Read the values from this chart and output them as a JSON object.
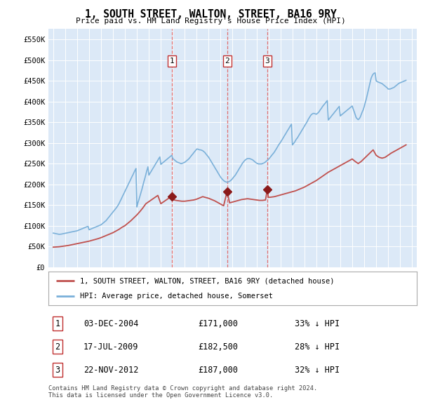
{
  "title": "1, SOUTH STREET, WALTON, STREET, BA16 9RY",
  "subtitle": "Price paid vs. HM Land Registry's House Price Index (HPI)",
  "ylim": [
    0,
    575000
  ],
  "yticks": [
    0,
    50000,
    100000,
    150000,
    200000,
    250000,
    300000,
    350000,
    400000,
    450000,
    500000,
    550000
  ],
  "ytick_labels": [
    "£0",
    "£50K",
    "£100K",
    "£150K",
    "£200K",
    "£250K",
    "£300K",
    "£350K",
    "£400K",
    "£450K",
    "£500K",
    "£550K"
  ],
  "plot_bg": "#dce9f7",
  "transactions": [
    {
      "date": 2004.92,
      "price": 171000,
      "label": "1"
    },
    {
      "date": 2009.54,
      "price": 182500,
      "label": "2"
    },
    {
      "date": 2012.9,
      "price": 187000,
      "label": "3"
    }
  ],
  "legend_property": "1, SOUTH STREET, WALTON, STREET, BA16 9RY (detached house)",
  "legend_hpi": "HPI: Average price, detached house, Somerset",
  "table_rows": [
    {
      "num": "1",
      "date": "03-DEC-2004",
      "price": "£171,000",
      "hpi": "33% ↓ HPI"
    },
    {
      "num": "2",
      "date": "17-JUL-2009",
      "price": "£182,500",
      "hpi": "28% ↓ HPI"
    },
    {
      "num": "3",
      "date": "22-NOV-2012",
      "price": "£187,000",
      "hpi": "32% ↓ HPI"
    }
  ],
  "footer": "Contains HM Land Registry data © Crown copyright and database right 2024.\nThis data is licensed under the Open Government Licence v3.0.",
  "hpi_line_x": [
    1995.0,
    1995.08,
    1995.17,
    1995.25,
    1995.33,
    1995.42,
    1995.5,
    1995.58,
    1995.67,
    1995.75,
    1995.83,
    1995.92,
    1996.0,
    1996.08,
    1996.17,
    1996.25,
    1996.33,
    1996.42,
    1996.5,
    1996.58,
    1996.67,
    1996.75,
    1996.83,
    1996.92,
    1997.0,
    1997.08,
    1997.17,
    1997.25,
    1997.33,
    1997.42,
    1997.5,
    1997.58,
    1997.67,
    1997.75,
    1997.83,
    1997.92,
    1998.0,
    1998.08,
    1998.17,
    1998.25,
    1998.33,
    1998.42,
    1998.5,
    1998.58,
    1998.67,
    1998.75,
    1998.83,
    1998.92,
    1999.0,
    1999.08,
    1999.17,
    1999.25,
    1999.33,
    1999.42,
    1999.5,
    1999.58,
    1999.67,
    1999.75,
    1999.83,
    1999.92,
    2000.0,
    2000.08,
    2000.17,
    2000.25,
    2000.33,
    2000.42,
    2000.5,
    2000.58,
    2000.67,
    2000.75,
    2000.83,
    2000.92,
    2001.0,
    2001.08,
    2001.17,
    2001.25,
    2001.33,
    2001.42,
    2001.5,
    2001.58,
    2001.67,
    2001.75,
    2001.83,
    2001.92,
    2002.0,
    2002.08,
    2002.17,
    2002.25,
    2002.33,
    2002.42,
    2002.5,
    2002.58,
    2002.67,
    2002.75,
    2002.83,
    2002.92,
    2003.0,
    2003.08,
    2003.17,
    2003.25,
    2003.33,
    2003.42,
    2003.5,
    2003.58,
    2003.67,
    2003.75,
    2003.83,
    2003.92,
    2004.0,
    2004.08,
    2004.17,
    2004.25,
    2004.33,
    2004.42,
    2004.5,
    2004.58,
    2004.67,
    2004.75,
    2004.83,
    2004.92,
    2005.0,
    2005.08,
    2005.17,
    2005.25,
    2005.33,
    2005.42,
    2005.5,
    2005.58,
    2005.67,
    2005.75,
    2005.83,
    2005.92,
    2006.0,
    2006.08,
    2006.17,
    2006.25,
    2006.33,
    2006.42,
    2006.5,
    2006.58,
    2006.67,
    2006.75,
    2006.83,
    2006.92,
    2007.0,
    2007.08,
    2007.17,
    2007.25,
    2007.33,
    2007.42,
    2007.5,
    2007.58,
    2007.67,
    2007.75,
    2007.83,
    2007.92,
    2008.0,
    2008.08,
    2008.17,
    2008.25,
    2008.33,
    2008.42,
    2008.5,
    2008.58,
    2008.67,
    2008.75,
    2008.83,
    2008.92,
    2009.0,
    2009.08,
    2009.17,
    2009.25,
    2009.33,
    2009.42,
    2009.5,
    2009.58,
    2009.67,
    2009.75,
    2009.83,
    2009.92,
    2010.0,
    2010.08,
    2010.17,
    2010.25,
    2010.33,
    2010.42,
    2010.5,
    2010.58,
    2010.67,
    2010.75,
    2010.83,
    2010.92,
    2011.0,
    2011.08,
    2011.17,
    2011.25,
    2011.33,
    2011.42,
    2011.5,
    2011.58,
    2011.67,
    2011.75,
    2011.83,
    2011.92,
    2012.0,
    2012.08,
    2012.17,
    2012.25,
    2012.33,
    2012.42,
    2012.5,
    2012.58,
    2012.67,
    2012.75,
    2012.83,
    2012.92,
    2013.0,
    2013.08,
    2013.17,
    2013.25,
    2013.33,
    2013.42,
    2013.5,
    2013.58,
    2013.67,
    2013.75,
    2013.83,
    2013.92,
    2014.0,
    2014.08,
    2014.17,
    2014.25,
    2014.33,
    2014.42,
    2014.5,
    2014.58,
    2014.67,
    2014.75,
    2014.83,
    2014.92,
    2015.0,
    2015.08,
    2015.17,
    2015.25,
    2015.33,
    2015.42,
    2015.5,
    2015.58,
    2015.67,
    2015.75,
    2015.83,
    2015.92,
    2016.0,
    2016.08,
    2016.17,
    2016.25,
    2016.33,
    2016.42,
    2016.5,
    2016.58,
    2016.67,
    2016.75,
    2016.83,
    2016.92,
    2017.0,
    2017.08,
    2017.17,
    2017.25,
    2017.33,
    2017.42,
    2017.5,
    2017.58,
    2017.67,
    2017.75,
    2017.83,
    2017.92,
    2018.0,
    2018.08,
    2018.17,
    2018.25,
    2018.33,
    2018.42,
    2018.5,
    2018.58,
    2018.67,
    2018.75,
    2018.83,
    2018.92,
    2019.0,
    2019.08,
    2019.17,
    2019.25,
    2019.33,
    2019.42,
    2019.5,
    2019.58,
    2019.67,
    2019.75,
    2019.83,
    2019.92,
    2020.0,
    2020.08,
    2020.17,
    2020.25,
    2020.33,
    2020.42,
    2020.5,
    2020.58,
    2020.67,
    2020.75,
    2020.83,
    2020.92,
    2021.0,
    2021.08,
    2021.17,
    2021.25,
    2021.33,
    2021.42,
    2021.5,
    2021.58,
    2021.67,
    2021.75,
    2021.83,
    2021.92,
    2022.0,
    2022.08,
    2022.17,
    2022.25,
    2022.33,
    2022.42,
    2022.5,
    2022.58,
    2022.67,
    2022.75,
    2022.83,
    2022.92,
    2023.0,
    2023.08,
    2023.17,
    2023.25,
    2023.33,
    2023.42,
    2023.5,
    2023.58,
    2023.67,
    2023.75,
    2023.83,
    2023.92,
    2024.0,
    2024.08,
    2024.17,
    2024.25,
    2024.33,
    2024.42,
    2024.5
  ],
  "hpi_line_y": [
    82000,
    81500,
    81000,
    80500,
    80000,
    79500,
    79000,
    79200,
    79500,
    80000,
    80500,
    81000,
    81500,
    82000,
    82500,
    83000,
    83500,
    84000,
    84500,
    85000,
    85500,
    86000,
    86500,
    87000,
    87500,
    88500,
    89500,
    90500,
    91500,
    92500,
    93500,
    94500,
    95500,
    96500,
    97500,
    98000,
    90000,
    91000,
    92000,
    93000,
    94000,
    95000,
    96000,
    97000,
    98000,
    99000,
    100000,
    101000,
    102000,
    104000,
    106000,
    108000,
    110000,
    112000,
    115000,
    118000,
    121000,
    124000,
    127000,
    130000,
    133000,
    136000,
    139000,
    142000,
    145000,
    149000,
    153000,
    158000,
    163000,
    168000,
    173000,
    178000,
    183000,
    188000,
    193000,
    198000,
    203000,
    208000,
    213000,
    218000,
    223000,
    228000,
    233000,
    238000,
    145000,
    155000,
    163000,
    171000,
    179000,
    188000,
    197000,
    206000,
    215000,
    224000,
    233000,
    242000,
    222000,
    226000,
    230000,
    234000,
    238000,
    242000,
    246000,
    250000,
    254000,
    258000,
    262000,
    266000,
    248000,
    250000,
    252000,
    254000,
    256000,
    258000,
    260000,
    262000,
    264000,
    266000,
    268000,
    270000,
    262000,
    260000,
    258000,
    256000,
    254000,
    253000,
    252000,
    251000,
    250000,
    250000,
    251000,
    252000,
    253000,
    255000,
    257000,
    259000,
    261000,
    264000,
    267000,
    270000,
    273000,
    276000,
    279000,
    282000,
    285000,
    285000,
    284000,
    283000,
    283000,
    282000,
    281000,
    279000,
    277000,
    274000,
    271000,
    268000,
    265000,
    261000,
    257000,
    253000,
    249000,
    245000,
    241000,
    237000,
    233000,
    229000,
    225000,
    221000,
    217000,
    214000,
    211000,
    209000,
    207000,
    206000,
    205000,
    205000,
    206000,
    207000,
    209000,
    211000,
    214000,
    217000,
    220000,
    223000,
    227000,
    231000,
    235000,
    239000,
    243000,
    247000,
    251000,
    254000,
    257000,
    259000,
    261000,
    262000,
    262000,
    262000,
    261000,
    260000,
    259000,
    257000,
    255000,
    253000,
    251000,
    250000,
    249000,
    249000,
    249000,
    249000,
    250000,
    251000,
    252000,
    254000,
    256000,
    258000,
    260000,
    263000,
    266000,
    269000,
    272000,
    275000,
    278000,
    282000,
    286000,
    290000,
    294000,
    298000,
    301000,
    305000,
    309000,
    313000,
    317000,
    321000,
    325000,
    329000,
    333000,
    337000,
    341000,
    345000,
    295000,
    298000,
    301000,
    305000,
    309000,
    312000,
    316000,
    320000,
    324000,
    328000,
    332000,
    336000,
    340000,
    344000,
    348000,
    352000,
    357000,
    361000,
    365000,
    368000,
    370000,
    371000,
    371000,
    370000,
    369000,
    371000,
    373000,
    376000,
    380000,
    383000,
    387000,
    390000,
    393000,
    396000,
    399000,
    402000,
    355000,
    358000,
    361000,
    364000,
    367000,
    370000,
    373000,
    376000,
    379000,
    382000,
    385000,
    388000,
    365000,
    367000,
    369000,
    371000,
    373000,
    375000,
    377000,
    379000,
    381000,
    383000,
    385000,
    387000,
    389000,
    382000,
    375000,
    368000,
    361000,
    358000,
    356000,
    358000,
    362000,
    368000,
    374000,
    380000,
    387000,
    396000,
    405000,
    415000,
    425000,
    436000,
    447000,
    456000,
    462000,
    466000,
    468000,
    469000,
    450000,
    448000,
    447000,
    446000,
    445000,
    444000,
    443000,
    441000,
    439000,
    437000,
    435000,
    433000,
    430000,
    430000,
    430000,
    431000,
    432000,
    433000,
    434000,
    436000,
    438000,
    440000,
    442000,
    444000,
    445000,
    446000,
    447000,
    448000,
    449000,
    450000,
    451000
  ],
  "prop_line_x": [
    1995.0,
    1995.25,
    1995.5,
    1995.75,
    1996.0,
    1996.25,
    1996.5,
    1996.75,
    1997.0,
    1997.25,
    1997.5,
    1997.75,
    1998.0,
    1998.25,
    1998.5,
    1998.75,
    1999.0,
    1999.25,
    1999.5,
    1999.75,
    2000.0,
    2000.25,
    2000.5,
    2000.75,
    2001.0,
    2001.25,
    2001.5,
    2001.75,
    2002.0,
    2002.25,
    2002.5,
    2002.75,
    2003.0,
    2003.25,
    2003.5,
    2003.75,
    2004.0,
    2004.25,
    2004.5,
    2004.75,
    2004.92,
    2005.0,
    2005.25,
    2005.5,
    2005.75,
    2006.0,
    2006.25,
    2006.5,
    2006.75,
    2007.0,
    2007.25,
    2007.5,
    2007.75,
    2008.0,
    2008.25,
    2008.5,
    2008.75,
    2009.0,
    2009.25,
    2009.54,
    2009.75,
    2010.0,
    2010.25,
    2010.5,
    2010.75,
    2011.0,
    2011.25,
    2011.5,
    2011.75,
    2012.0,
    2012.25,
    2012.5,
    2012.75,
    2012.9,
    2013.0,
    2013.25,
    2013.5,
    2013.75,
    2014.0,
    2014.25,
    2014.5,
    2014.75,
    2015.0,
    2015.25,
    2015.5,
    2015.75,
    2016.0,
    2016.25,
    2016.5,
    2016.75,
    2017.0,
    2017.25,
    2017.5,
    2017.75,
    2018.0,
    2018.25,
    2018.5,
    2018.75,
    2019.0,
    2019.25,
    2019.5,
    2019.75,
    2020.0,
    2020.25,
    2020.5,
    2020.75,
    2021.0,
    2021.25,
    2021.5,
    2021.75,
    2022.0,
    2022.25,
    2022.5,
    2022.75,
    2023.0,
    2023.25,
    2023.5,
    2023.75,
    2024.0,
    2024.25,
    2024.5
  ],
  "prop_line_y": [
    48000,
    48500,
    49000,
    50000,
    51000,
    52000,
    53500,
    55000,
    56500,
    58000,
    59500,
    61000,
    62500,
    64500,
    66500,
    68500,
    71000,
    74000,
    77000,
    80000,
    83000,
    87000,
    91000,
    96000,
    100000,
    106000,
    112000,
    119000,
    126000,
    134000,
    143000,
    153000,
    158000,
    163000,
    168000,
    173000,
    153000,
    158000,
    163000,
    168000,
    171000,
    163000,
    161000,
    160000,
    159000,
    159000,
    160000,
    161000,
    162000,
    164000,
    167000,
    170000,
    168000,
    166000,
    163000,
    160000,
    156000,
    152000,
    148000,
    182500,
    155000,
    157000,
    159000,
    161000,
    163000,
    164000,
    165000,
    164000,
    163000,
    162000,
    161000,
    161000,
    162000,
    187000,
    168000,
    169000,
    170000,
    172000,
    174000,
    176000,
    178000,
    180000,
    182000,
    184000,
    187000,
    190000,
    193000,
    197000,
    201000,
    205000,
    209000,
    214000,
    219000,
    224000,
    229000,
    233000,
    237000,
    241000,
    245000,
    249000,
    253000,
    257000,
    261000,
    255000,
    250000,
    255000,
    262000,
    269000,
    276000,
    283000,
    270000,
    265000,
    263000,
    265000,
    270000,
    275000,
    279000,
    283000,
    287000,
    291000,
    295000
  ]
}
